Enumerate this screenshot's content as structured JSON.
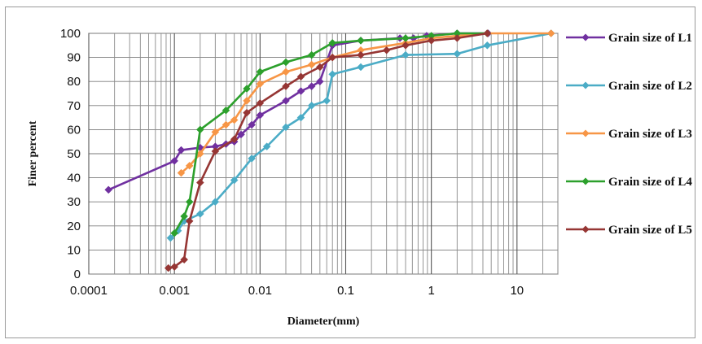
{
  "chart_data": {
    "type": "line",
    "xlabel": "Diameter(mm)",
    "ylabel": "Finer percent",
    "xscale": "log",
    "xlim": [
      0.0001,
      30
    ],
    "ylim": [
      0,
      100
    ],
    "xticks": [
      "0.0001",
      "0.001",
      "0.01",
      "0.1",
      "1",
      "10"
    ],
    "yticks": [
      "0",
      "10",
      "20",
      "30",
      "40",
      "50",
      "60",
      "70",
      "80",
      "90",
      "100"
    ],
    "grid": true,
    "legend_position": "right",
    "series": [
      {
        "name": "Grain size of L1",
        "color": "#7030a0",
        "marker": "diamond",
        "points": [
          [
            0.00017,
            35
          ],
          [
            0.001,
            47
          ],
          [
            0.0012,
            51.5
          ],
          [
            0.002,
            52.5
          ],
          [
            0.003,
            53
          ],
          [
            0.004,
            54
          ],
          [
            0.005,
            55
          ],
          [
            0.006,
            58
          ],
          [
            0.008,
            62
          ],
          [
            0.01,
            66
          ],
          [
            0.02,
            72
          ],
          [
            0.03,
            76
          ],
          [
            0.04,
            78
          ],
          [
            0.05,
            80
          ],
          [
            0.07,
            95
          ],
          [
            0.15,
            97
          ],
          [
            0.43,
            98
          ],
          [
            0.62,
            98
          ],
          [
            0.88,
            99
          ],
          [
            2.0,
            100
          ],
          [
            4.6,
            100
          ]
        ]
      },
      {
        "name": "Grain size of L2",
        "color": "#4bacc6",
        "marker": "diamond",
        "points": [
          [
            0.0009,
            15
          ],
          [
            0.0011,
            18
          ],
          [
            0.0013,
            22
          ],
          [
            0.002,
            25
          ],
          [
            0.003,
            30
          ],
          [
            0.005,
            39
          ],
          [
            0.008,
            48
          ],
          [
            0.012,
            53
          ],
          [
            0.02,
            61
          ],
          [
            0.03,
            65
          ],
          [
            0.04,
            70
          ],
          [
            0.06,
            72
          ],
          [
            0.07,
            83
          ],
          [
            0.15,
            86
          ],
          [
            0.5,
            91
          ],
          [
            2.0,
            91.5
          ],
          [
            4.5,
            95
          ],
          [
            25,
            100
          ]
        ]
      },
      {
        "name": "Grain size of L3",
        "color": "#f79646",
        "marker": "diamond",
        "points": [
          [
            0.0012,
            42
          ],
          [
            0.0015,
            45
          ],
          [
            0.002,
            50
          ],
          [
            0.003,
            59
          ],
          [
            0.004,
            62
          ],
          [
            0.005,
            64
          ],
          [
            0.007,
            72
          ],
          [
            0.01,
            79
          ],
          [
            0.02,
            84
          ],
          [
            0.04,
            87
          ],
          [
            0.07,
            90
          ],
          [
            0.15,
            93
          ],
          [
            0.5,
            96
          ],
          [
            1.0,
            98
          ],
          [
            2.0,
            99
          ],
          [
            4.5,
            100
          ],
          [
            25,
            100
          ]
        ]
      },
      {
        "name": "Grain size of L4",
        "color": "#2ca02c",
        "marker": "diamond",
        "points": [
          [
            0.001,
            17
          ],
          [
            0.0013,
            24
          ],
          [
            0.0015,
            30
          ],
          [
            0.002,
            60
          ],
          [
            0.004,
            68
          ],
          [
            0.007,
            77
          ],
          [
            0.01,
            84
          ],
          [
            0.02,
            88
          ],
          [
            0.04,
            91
          ],
          [
            0.07,
            96
          ],
          [
            0.15,
            97
          ],
          [
            0.5,
            98
          ],
          [
            1.0,
            99
          ],
          [
            2.0,
            100
          ],
          [
            4.5,
            100
          ]
        ]
      },
      {
        "name": "Grain size of L5",
        "color": "#963634",
        "marker": "diamond",
        "points": [
          [
            0.00085,
            2.5
          ],
          [
            0.001,
            3
          ],
          [
            0.0013,
            6
          ],
          [
            0.0015,
            22
          ],
          [
            0.002,
            38
          ],
          [
            0.003,
            51
          ],
          [
            0.005,
            56
          ],
          [
            0.007,
            67
          ],
          [
            0.01,
            71
          ],
          [
            0.02,
            78
          ],
          [
            0.03,
            82
          ],
          [
            0.05,
            86
          ],
          [
            0.07,
            90
          ],
          [
            0.15,
            91
          ],
          [
            0.3,
            93
          ],
          [
            0.5,
            95
          ],
          [
            1.0,
            97
          ],
          [
            2.0,
            98
          ],
          [
            4.5,
            100
          ]
        ]
      }
    ]
  }
}
